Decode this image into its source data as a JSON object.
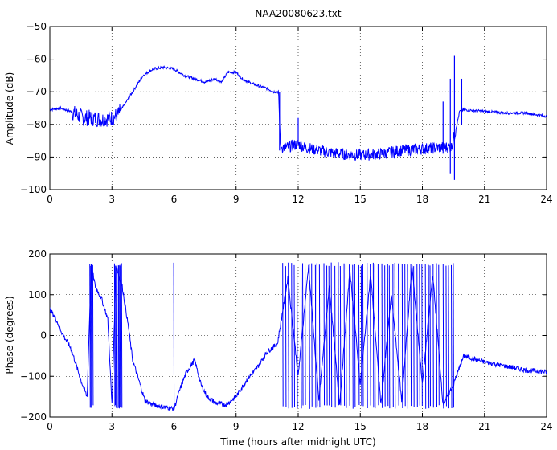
{
  "chart_data": [
    {
      "type": "line",
      "title": "NAA20080623.txt",
      "xlabel": "",
      "ylabel": "Amplitude (dB)",
      "xlim": [
        0,
        24
      ],
      "ylim": [
        -100,
        -50
      ],
      "xticks": [
        0,
        3,
        6,
        9,
        12,
        15,
        18,
        21,
        24
      ],
      "yticks": [
        -100,
        -90,
        -80,
        -70,
        -60,
        -50
      ],
      "grid": true,
      "line_color": "#0000ff",
      "series": [
        {
          "x": [
            0,
            0.5,
            1,
            1.3,
            1.6,
            2,
            2.5,
            3,
            3.3,
            3.6,
            4,
            4.5,
            5,
            5.5,
            6,
            6.5,
            7,
            7.5,
            8,
            8.3,
            8.6,
            9,
            9.3,
            9.6,
            10,
            10.5,
            10.8,
            11.05,
            11.15,
            11.5,
            12,
            12.3,
            13,
            14,
            15,
            16,
            17,
            18,
            19,
            19.4,
            19.6,
            19.8,
            20,
            21,
            22,
            23,
            24
          ],
          "y": [
            -75.5,
            -75,
            -76,
            -77,
            -78,
            -78,
            -78.5,
            -78,
            -77,
            -74,
            -70,
            -65,
            -63,
            -62.5,
            -63,
            -65,
            -66,
            -67,
            -66,
            -67,
            -64,
            -64,
            -66,
            -67,
            -68,
            -69,
            -70,
            -70,
            -87,
            -87,
            -86,
            -87,
            -88,
            -89,
            -89.5,
            -89,
            -88,
            -87.5,
            -87,
            -87,
            -82,
            -76,
            -75.5,
            -76,
            -76.5,
            -76.5,
            -77.5
          ],
          "spikes": [
            {
              "x": 11.1,
              "y": -70,
              "y_end": -88
            },
            {
              "x": 12.0,
              "y": -78,
              "y_end": -86
            },
            {
              "x": 19.0,
              "y": -73,
              "y_end": -89
            },
            {
              "x": 19.35,
              "y": -66,
              "y_end": -95
            },
            {
              "x": 19.55,
              "y": -59,
              "y_end": -97
            },
            {
              "x": 19.9,
              "y": -66,
              "y_end": -80
            }
          ],
          "noise": [
            {
              "x0": 1.1,
              "x1": 3.4,
              "amplitude": 2.5
            },
            {
              "x0": 11.2,
              "x1": 19.6,
              "amplitude": 1.8
            }
          ]
        }
      ]
    },
    {
      "type": "line",
      "title": "",
      "xlabel": "Time (hours after midnight UTC)",
      "ylabel": "Phase (degrees)",
      "xlim": [
        0,
        24
      ],
      "ylim": [
        -200,
        200
      ],
      "xticks": [
        0,
        3,
        6,
        9,
        12,
        15,
        18,
        21,
        24
      ],
      "yticks": [
        -200,
        -100,
        0,
        100,
        200
      ],
      "grid": true,
      "line_color": "#0000ff",
      "series": [
        {
          "x": [
            0,
            0.3,
            0.6,
            1,
            1.2,
            1.5,
            1.8,
            2,
            2.2,
            2.5,
            2.8,
            3,
            3.2,
            3.5,
            3.8,
            4,
            4.3,
            4.6,
            5,
            5.5,
            6,
            6.3,
            6.6,
            7,
            7.3,
            7.6,
            8,
            8.5,
            9,
            9.5,
            10,
            10.5,
            11,
            11.5,
            12,
            12.5,
            13,
            13.5,
            14,
            14.5,
            15,
            15.5,
            16,
            16.5,
            17,
            17.5,
            18,
            18.5,
            19,
            19.5,
            20,
            21,
            22,
            23,
            24
          ],
          "y": [
            65,
            40,
            5,
            -30,
            -60,
            -110,
            -150,
            170,
            120,
            90,
            40,
            -170,
            170,
            120,
            20,
            -60,
            -110,
            -160,
            -170,
            -175,
            -180,
            -130,
            -90,
            -60,
            -120,
            -150,
            -165,
            -170,
            -150,
            -110,
            -80,
            -40,
            -20,
            140,
            -100,
            170,
            -160,
            120,
            -170,
            160,
            -120,
            150,
            -170,
            100,
            -160,
            170,
            -120,
            150,
            -170,
            -120,
            -50,
            -65,
            -75,
            -85,
            -90
          ],
          "wraps": [
            {
              "x0": 1.9,
              "x1": 2.1,
              "count": 4
            },
            {
              "x0": 3.1,
              "x1": 3.5,
              "count": 9
            },
            {
              "x0": 5.95,
              "x1": 6.0,
              "count": 1
            },
            {
              "x0": 11.2,
              "x1": 19.6,
              "count": 60
            }
          ]
        }
      ]
    }
  ]
}
